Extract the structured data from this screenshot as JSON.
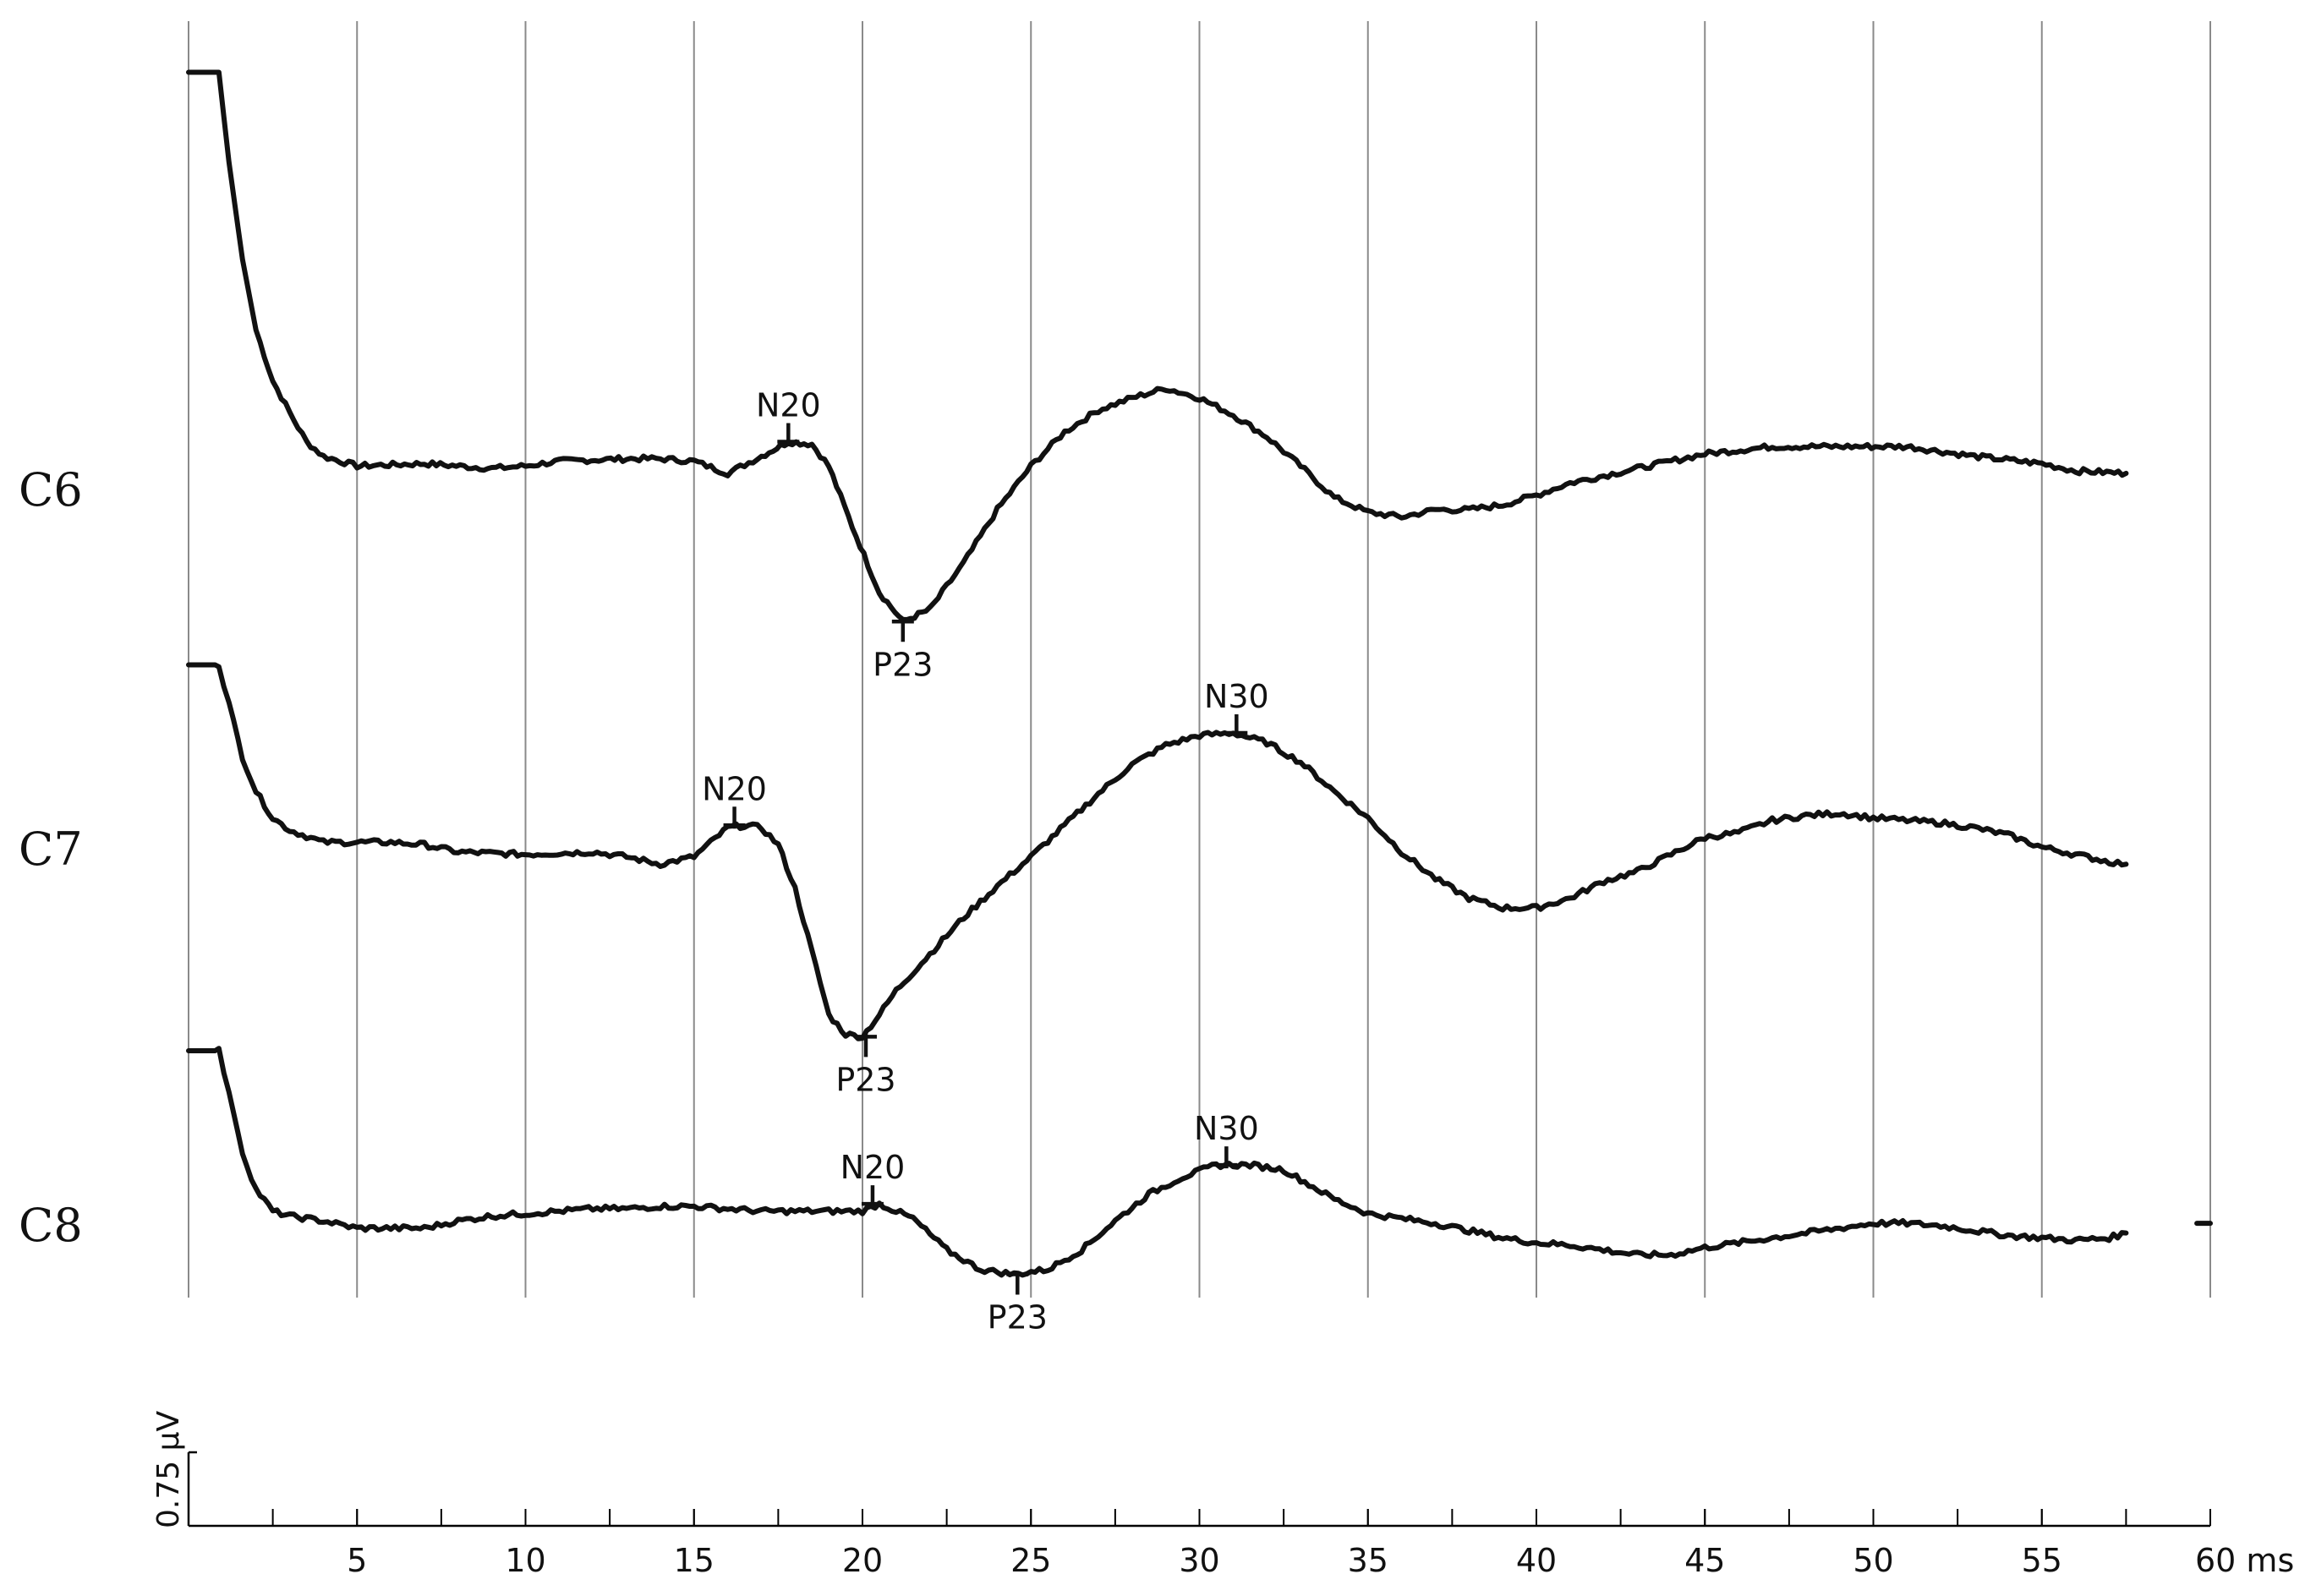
{
  "chart_data": {
    "type": "line",
    "x_unit": "ms",
    "xlim": [
      0,
      60
    ],
    "x_ticks": [
      5,
      10,
      15,
      20,
      25,
      30,
      35,
      40,
      45,
      50,
      55,
      60
    ],
    "x_tick_labels": [
      "5",
      "10",
      "15",
      "20",
      "25",
      "30",
      "35",
      "40",
      "45",
      "50",
      "55",
      "60 ms"
    ],
    "grid": true,
    "scale_bar": {
      "value": 0.75,
      "unit": "µV",
      "label": "0.75 µV"
    },
    "series": [
      {
        "name": "C6",
        "points": [
          [
            0,
            17.2
          ],
          [
            0.9,
            17.2
          ],
          [
            1.2,
            13.5
          ],
          [
            1.6,
            9.5
          ],
          [
            2,
            6.6
          ],
          [
            2.5,
            4.5
          ],
          [
            3,
            3.2
          ],
          [
            3.5,
            2.0
          ],
          [
            4,
            1.4
          ],
          [
            5,
            1.0
          ],
          [
            7,
            1.1
          ],
          [
            9,
            0.9
          ],
          [
            10,
            1.0
          ],
          [
            11,
            1.2
          ],
          [
            13,
            1.3
          ],
          [
            14,
            1.3
          ],
          [
            15,
            1.2
          ],
          [
            16,
            0.7
          ],
          [
            17,
            1.4
          ],
          [
            17.8,
            2.0
          ],
          [
            18.5,
            1.9
          ],
          [
            19,
            1.0
          ],
          [
            19.7,
            -1.5
          ],
          [
            20.5,
            -4.2
          ],
          [
            21.2,
            -5.4
          ],
          [
            22,
            -4.9
          ],
          [
            23,
            -3.0
          ],
          [
            24,
            -0.8
          ],
          [
            25,
            1.0
          ],
          [
            26,
            2.4
          ],
          [
            27,
            3.3
          ],
          [
            28,
            3.8
          ],
          [
            29,
            4.2
          ],
          [
            30,
            3.8
          ],
          [
            31,
            3.1
          ],
          [
            32,
            2.2
          ],
          [
            33,
            1.0
          ],
          [
            34,
            -0.3
          ],
          [
            35,
            -0.9
          ],
          [
            36,
            -1.1
          ],
          [
            37,
            -0.8
          ],
          [
            38,
            -0.8
          ],
          [
            39,
            -0.6
          ],
          [
            40,
            -0.2
          ],
          [
            41,
            0.3
          ],
          [
            42,
            0.6
          ],
          [
            43,
            0.9
          ],
          [
            44,
            1.2
          ],
          [
            45,
            1.5
          ],
          [
            47,
            1.8
          ],
          [
            49,
            1.8
          ],
          [
            51,
            1.8
          ],
          [
            53,
            1.4
          ],
          [
            55,
            1.1
          ],
          [
            56,
            0.8
          ],
          [
            57.5,
            0.7
          ]
        ],
        "peaks": [
          {
            "name": "N20",
            "x": 17.8,
            "y": 2.0,
            "label_pos": "above"
          },
          {
            "name": "P23",
            "x": 21.2,
            "y": -5.4,
            "label_pos": "below"
          }
        ]
      },
      {
        "name": "C7",
        "points": [
          [
            0,
            7.6
          ],
          [
            0.9,
            7.6
          ],
          [
            1.2,
            6.0
          ],
          [
            1.6,
            3.8
          ],
          [
            2,
            2.4
          ],
          [
            2.5,
            1.3
          ],
          [
            3,
            0.8
          ],
          [
            4,
            0.3
          ],
          [
            5,
            0.3
          ],
          [
            6,
            0.3
          ],
          [
            7,
            0.2
          ],
          [
            8,
            -0.1
          ],
          [
            10,
            -0.2
          ],
          [
            12,
            -0.1
          ],
          [
            13,
            -0.3
          ],
          [
            14,
            -0.6
          ],
          [
            15,
            -0.3
          ],
          [
            16,
            0.9
          ],
          [
            16.5,
            1.0
          ],
          [
            17,
            0.9
          ],
          [
            17.5,
            0.2
          ],
          [
            18,
            -1.6
          ],
          [
            18.5,
            -4.2
          ],
          [
            19,
            -6.8
          ],
          [
            19.5,
            -7.6
          ],
          [
            20,
            -7.7
          ],
          [
            20.5,
            -6.8
          ],
          [
            21,
            -5.8
          ],
          [
            22,
            -4.3
          ],
          [
            23,
            -2.8
          ],
          [
            24,
            -1.5
          ],
          [
            25,
            -0.3
          ],
          [
            26,
            1.0
          ],
          [
            27,
            2.3
          ],
          [
            28,
            3.5
          ],
          [
            29,
            4.3
          ],
          [
            30,
            4.7
          ],
          [
            31,
            4.8
          ],
          [
            32,
            4.4
          ],
          [
            33,
            3.6
          ],
          [
            34,
            2.4
          ],
          [
            35,
            1.3
          ],
          [
            36,
            -0.1
          ],
          [
            37,
            -1.2
          ],
          [
            38,
            -2.0
          ],
          [
            39,
            -2.4
          ],
          [
            40,
            -2.4
          ],
          [
            41,
            -2.0
          ],
          [
            42,
            -1.3
          ],
          [
            43,
            -0.9
          ],
          [
            44,
            -0.2
          ],
          [
            45,
            0.5
          ],
          [
            46,
            0.7
          ],
          [
            47,
            1.2
          ],
          [
            48,
            1.4
          ],
          [
            49,
            1.5
          ],
          [
            50,
            1.3
          ],
          [
            51,
            1.2
          ],
          [
            52,
            1.1
          ],
          [
            53,
            0.9
          ],
          [
            54,
            0.6
          ],
          [
            55,
            0.1
          ],
          [
            56,
            -0.2
          ],
          [
            57,
            -0.5
          ],
          [
            57.5,
            -0.6
          ]
        ],
        "peaks": [
          {
            "name": "N20",
            "x": 16.2,
            "y": 1.0,
            "label_pos": "above"
          },
          {
            "name": "P23",
            "x": 20.1,
            "y": -7.7,
            "label_pos": "below"
          },
          {
            "name": "N30",
            "x": 31.1,
            "y": 4.8,
            "label_pos": "above"
          }
        ]
      },
      {
        "name": "C8",
        "points": [
          [
            0,
            7.2
          ],
          [
            0.9,
            7.2
          ],
          [
            1.2,
            5.5
          ],
          [
            1.6,
            3.0
          ],
          [
            2,
            1.5
          ],
          [
            2.5,
            0.6
          ],
          [
            3,
            0.4
          ],
          [
            4,
            0.2
          ],
          [
            5,
            -0.1
          ],
          [
            6,
            -0.1
          ],
          [
            7,
            -0.1
          ],
          [
            8,
            0.2
          ],
          [
            9,
            0.4
          ],
          [
            10,
            0.5
          ],
          [
            11,
            0.6
          ],
          [
            12,
            0.7
          ],
          [
            13,
            0.7
          ],
          [
            14,
            0.8
          ],
          [
            15,
            0.8
          ],
          [
            16,
            0.7
          ],
          [
            17,
            0.6
          ],
          [
            18,
            0.6
          ],
          [
            19,
            0.6
          ],
          [
            20,
            0.6
          ],
          [
            20.5,
            0.9
          ],
          [
            21.5,
            0.3
          ],
          [
            22.5,
            -1.0
          ],
          [
            23.5,
            -1.8
          ],
          [
            24.5,
            -2.0
          ],
          [
            25.5,
            -1.8
          ],
          [
            26.5,
            -1.0
          ],
          [
            27.5,
            0.2
          ],
          [
            28.5,
            1.3
          ],
          [
            29.5,
            2.0
          ],
          [
            30.5,
            2.5
          ],
          [
            31.5,
            2.5
          ],
          [
            32.5,
            2.3
          ],
          [
            33,
            1.9
          ],
          [
            34,
            1.1
          ],
          [
            35,
            0.5
          ],
          [
            36,
            0.3
          ],
          [
            37,
            0.1
          ],
          [
            38,
            -0.2
          ],
          [
            39,
            -0.5
          ],
          [
            40,
            -0.7
          ],
          [
            41,
            -0.8
          ],
          [
            42,
            -1.0
          ],
          [
            43,
            -1.2
          ],
          [
            44,
            -1.2
          ],
          [
            45,
            -0.9
          ],
          [
            46,
            -0.7
          ],
          [
            47,
            -0.5
          ],
          [
            48,
            -0.3
          ],
          [
            49,
            -0.1
          ],
          [
            50,
            0.1
          ],
          [
            51,
            0.1
          ],
          [
            52,
            0.0
          ],
          [
            53,
            -0.2
          ],
          [
            54,
            -0.4
          ],
          [
            55,
            -0.5
          ],
          [
            56,
            -0.6
          ],
          [
            57,
            -0.5
          ],
          [
            57.5,
            -0.3
          ]
        ],
        "extra_segment": [
          [
            59.6,
            0.1
          ],
          [
            60,
            0.1
          ]
        ],
        "peaks": [
          {
            "name": "N20",
            "x": 20.3,
            "y": 0.9,
            "label_pos": "above"
          },
          {
            "name": "P23",
            "x": 24.6,
            "y": -2.0,
            "label_pos": "below"
          },
          {
            "name": "N30",
            "x": 30.8,
            "y": 2.5,
            "label_pos": "above"
          }
        ]
      }
    ]
  }
}
